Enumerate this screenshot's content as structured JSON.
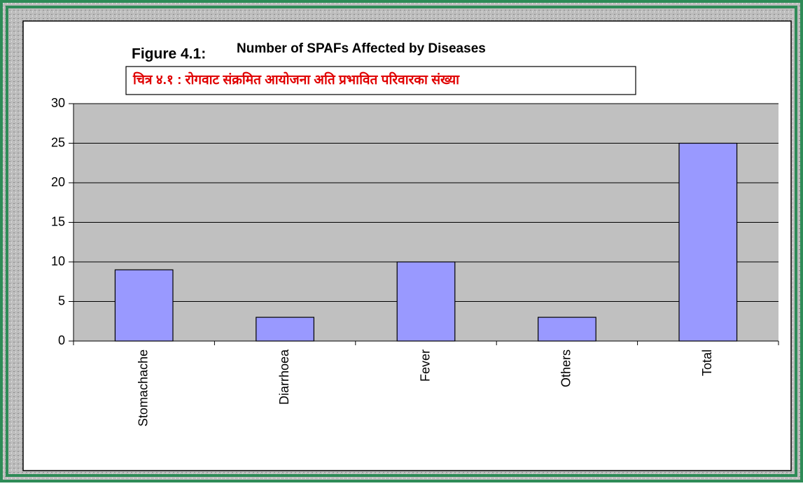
{
  "chart_data": {
    "type": "bar",
    "figure_label": "Figure 4.1:",
    "title": "Number of SPAFs Affected by Diseases",
    "subtitle": "चित्र ४.१ : रोगवाट संक्रमित आयोजना अति प्रभावित परिवारका संख्या",
    "categories": [
      "Stomachache",
      "Diarrhoea",
      "Fever",
      "Others",
      "Total"
    ],
    "values": [
      9,
      3,
      10,
      3,
      25
    ],
    "color": "#9999ff",
    "ylim": [
      0,
      30
    ],
    "yticks": [
      0,
      5,
      10,
      15,
      20,
      25,
      30
    ],
    "grid": true
  }
}
